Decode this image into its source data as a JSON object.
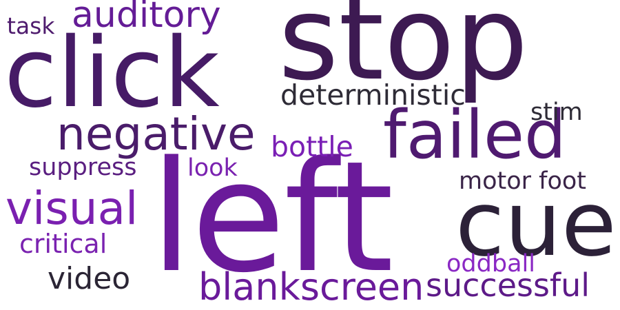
{
  "words": [
    {
      "id": "left",
      "text": "left",
      "color": "#6a1a9a"
    },
    {
      "id": "stop",
      "text": "stop",
      "color": "#3d1a52"
    },
    {
      "id": "click",
      "text": "click",
      "color": "#461b66"
    },
    {
      "id": "cue",
      "text": "cue",
      "color": "#2c2138"
    },
    {
      "id": "failed",
      "text": "failed",
      "color": "#4f1a70"
    },
    {
      "id": "negative",
      "text": "negative",
      "color": "#4a1c6a"
    },
    {
      "id": "visual",
      "text": "visual",
      "color": "#7a20b0"
    },
    {
      "id": "blankscreen",
      "text": "blankscreen",
      "color": "#6a1a9a"
    },
    {
      "id": "auditory",
      "text": "auditory",
      "color": "#641c96"
    },
    {
      "id": "successful",
      "text": "successful",
      "color": "#5d1a88"
    },
    {
      "id": "deterministic",
      "text": "deterministic",
      "color": "#2e2b36"
    },
    {
      "id": "bottle",
      "text": "bottle",
      "color": "#7a1fb5"
    },
    {
      "id": "video",
      "text": "video",
      "color": "#2b2535"
    },
    {
      "id": "critical",
      "text": "critical",
      "color": "#7a22b0"
    },
    {
      "id": "suppress",
      "text": "suppress",
      "color": "#5a1e80"
    },
    {
      "id": "look",
      "text": "look",
      "color": "#7a22b0"
    },
    {
      "id": "motor-foot",
      "text": "motor foot",
      "color": "#3a2448"
    },
    {
      "id": "stim",
      "text": "stim",
      "color": "#2e2b36"
    },
    {
      "id": "oddball",
      "text": "oddball",
      "color": "#8a28c4"
    },
    {
      "id": "task",
      "text": "task",
      "color": "#4f1c6e"
    }
  ]
}
